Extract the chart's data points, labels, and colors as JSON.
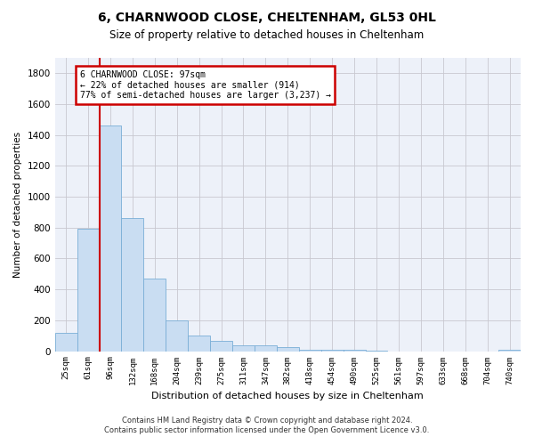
{
  "title1": "6, CHARNWOOD CLOSE, CHELTENHAM, GL53 0HL",
  "title2": "Size of property relative to detached houses in Cheltenham",
  "xlabel": "Distribution of detached houses by size in Cheltenham",
  "ylabel": "Number of detached properties",
  "categories": [
    "25sqm",
    "61sqm",
    "96sqm",
    "132sqm",
    "168sqm",
    "204sqm",
    "239sqm",
    "275sqm",
    "311sqm",
    "347sqm",
    "382sqm",
    "418sqm",
    "454sqm",
    "490sqm",
    "525sqm",
    "561sqm",
    "597sqm",
    "633sqm",
    "668sqm",
    "704sqm",
    "740sqm"
  ],
  "values": [
    120,
    795,
    1460,
    860,
    470,
    200,
    100,
    65,
    40,
    35,
    28,
    10,
    10,
    8,
    5,
    0,
    0,
    0,
    0,
    0,
    8
  ],
  "bar_color": "#c9ddf2",
  "bar_edge_color": "#7aaed6",
  "vline_index": 2,
  "annotation_title": "6 CHARNWOOD CLOSE: 97sqm",
  "annotation_line1": "← 22% of detached houses are smaller (914)",
  "annotation_line2": "77% of semi-detached houses are larger (3,237) →",
  "annotation_box_color": "#ffffff",
  "annotation_box_edge_color": "#cc0000",
  "vline_color": "#cc0000",
  "ylim": [
    0,
    1900
  ],
  "yticks": [
    0,
    200,
    400,
    600,
    800,
    1000,
    1200,
    1400,
    1600,
    1800
  ],
  "grid_color": "#c8c8d0",
  "background_color": "#edf1f9",
  "footnote_line1": "Contains HM Land Registry data © Crown copyright and database right 2024.",
  "footnote_line2": "Contains public sector information licensed under the Open Government Licence v3.0."
}
